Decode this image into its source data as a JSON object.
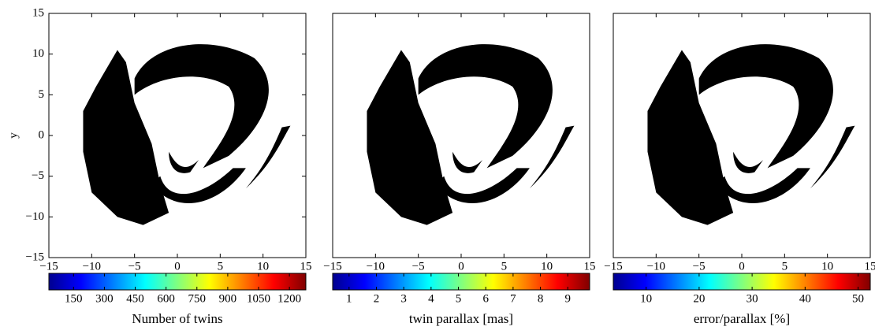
{
  "chart_data": [
    {
      "type": "scatter",
      "xlim": [
        -15,
        15
      ],
      "ylim": [
        -15,
        15
      ],
      "xticks": [
        {
          "value": -15,
          "label": "−15"
        },
        {
          "value": -10,
          "label": "−10"
        },
        {
          "value": -5,
          "label": "−5"
        },
        0,
        5,
        10,
        15
      ],
      "yticks": [
        {
          "value": -15,
          "label": "−15"
        },
        {
          "value": -10,
          "label": "−10"
        },
        {
          "value": -5,
          "label": "−5"
        },
        0,
        5,
        10,
        15
      ],
      "y_label": "y",
      "colormap": "jet",
      "clim": [
        30,
        1280
      ],
      "cticks": [
        150,
        300,
        450,
        600,
        750,
        900,
        1050,
        1200
      ],
      "colorbar_label": "Number of twins"
    },
    {
      "type": "scatter",
      "xlim": [
        -15,
        15
      ],
      "ylim": [
        -15,
        15
      ],
      "xticks": [
        {
          "value": -15,
          "label": "−15"
        },
        {
          "value": -10,
          "label": "−10"
        },
        {
          "value": -5,
          "label": "−5"
        },
        0,
        5,
        10,
        15
      ],
      "colormap": "jet",
      "clim": [
        0.4,
        9.8
      ],
      "cticks": [
        1,
        2,
        3,
        4,
        5,
        6,
        7,
        8,
        9
      ],
      "colorbar_label": "twin parallax [mas]"
    },
    {
      "type": "scatter",
      "xlim": [
        -15,
        15
      ],
      "ylim": [
        -15,
        15
      ],
      "xticks": [
        {
          "value": -15,
          "label": "−15"
        },
        {
          "value": -10,
          "label": "−10"
        },
        {
          "value": -5,
          "label": "−5"
        },
        0,
        5,
        10,
        15
      ],
      "colormap": "jet",
      "clim": [
        3.8,
        52.3
      ],
      "cticks": [
        10,
        20,
        30,
        40,
        50
      ],
      "colorbar_label": "error/parallax [%]"
    }
  ]
}
